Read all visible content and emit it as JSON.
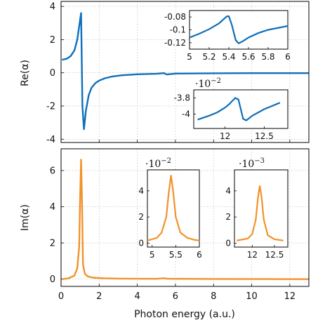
{
  "colors": {
    "re_series": "#0f6fba",
    "im_series": "#f2922a"
  },
  "chart_data": [
    {
      "id": "re",
      "type": "line",
      "ylabel": "Re(α)",
      "xlim": [
        0,
        13
      ],
      "ylim": [
        -4.2,
        4.3
      ],
      "grid": true,
      "yticks": [
        -4,
        -2,
        0,
        2,
        4
      ],
      "ytick_labels": [
        "-4",
        "-2",
        "0",
        "2",
        "4"
      ],
      "series": [
        {
          "color": "#0f6fba",
          "x": [
            0.05,
            0.3,
            0.5,
            0.7,
            0.85,
            0.95,
            1.05,
            1.12,
            1.2,
            1.3,
            1.45,
            1.6,
            1.8,
            2.0,
            2.3,
            2.7,
            3.2,
            4.0,
            5.0,
            5.4,
            5.55,
            6.0,
            8.0,
            10.0,
            13.0
          ],
          "y": [
            0.78,
            0.85,
            1.0,
            1.35,
            2.0,
            2.8,
            3.6,
            -2.0,
            -3.4,
            -2.3,
            -1.35,
            -0.9,
            -0.62,
            -0.47,
            -0.33,
            -0.22,
            -0.15,
            -0.09,
            -0.06,
            -0.02,
            -0.1,
            -0.05,
            -0.03,
            -0.02,
            -0.02
          ]
        }
      ],
      "insets": [
        {
          "id": "re-inset-1",
          "xlim": [
            5,
            6
          ],
          "ylim": [
            -0.13,
            -0.07
          ],
          "xticks": [
            5,
            5.2,
            5.4,
            5.6,
            5.8,
            6
          ],
          "xtick_labels": [
            "5",
            "5.2",
            "5.4",
            "5.6",
            "5.8",
            "6"
          ],
          "yticks": [
            -0.08,
            -0.1,
            -0.12
          ],
          "ytick_labels": [
            "-0.08",
            "-0.1",
            "-0.12"
          ],
          "x": [
            5.0,
            5.1,
            5.2,
            5.3,
            5.35,
            5.38,
            5.4,
            5.43,
            5.47,
            5.5,
            5.55,
            5.6,
            5.7,
            5.8,
            5.9,
            6.0
          ],
          "y": [
            -0.112,
            -0.106,
            -0.099,
            -0.09,
            -0.083,
            -0.079,
            -0.079,
            -0.092,
            -0.116,
            -0.121,
            -0.117,
            -0.112,
            -0.105,
            -0.1,
            -0.097,
            -0.094
          ]
        },
        {
          "id": "re-inset-2",
          "xlim": [
            11.6,
            12.8
          ],
          "ylim": [
            -4.18,
            -3.7
          ],
          "xticks": [
            12,
            12.5
          ],
          "xtick_labels": [
            "12",
            "12.5"
          ],
          "yticks": [
            -3.8,
            -4
          ],
          "ytick_labels": [
            "-3.8",
            "-4"
          ],
          "scale_base": "10",
          "scale_exponent": "−2",
          "x": [
            11.65,
            11.8,
            11.9,
            12.0,
            12.05,
            12.1,
            12.13,
            12.17,
            12.2,
            12.23,
            12.27,
            12.35,
            12.5,
            12.7
          ],
          "y": [
            -4.07,
            -4.02,
            -3.98,
            -3.92,
            -3.88,
            -3.83,
            -3.8,
            -3.82,
            -3.94,
            -4.06,
            -4.08,
            -4.02,
            -3.94,
            -3.86
          ]
        }
      ]
    },
    {
      "id": "im",
      "type": "line",
      "ylabel": "Im(α)",
      "xlabel": "Photon energy (a.u.)",
      "xlim": [
        0,
        13
      ],
      "ylim": [
        -0.4,
        7.2
      ],
      "grid": true,
      "xticks": [
        0,
        2,
        4,
        6,
        8,
        10,
        12
      ],
      "xtick_labels": [
        "0",
        "2",
        "4",
        "6",
        "8",
        "10",
        "12"
      ],
      "yticks": [
        0,
        2,
        4,
        6
      ],
      "ytick_labels": [
        "0",
        "2",
        "4",
        "6"
      ],
      "series": [
        {
          "color": "#f2922a",
          "x": [
            0.05,
            0.4,
            0.7,
            0.85,
            0.95,
            1.0,
            1.05,
            1.1,
            1.15,
            1.25,
            1.4,
            1.7,
            2.2,
            3.0,
            5.0,
            5.4,
            5.6,
            8.0,
            13.0
          ],
          "y": [
            0.0,
            0.05,
            0.2,
            0.6,
            1.8,
            4.5,
            6.6,
            4.2,
            0.8,
            0.3,
            0.15,
            0.08,
            0.05,
            0.03,
            0.02,
            0.05,
            0.02,
            0.01,
            0.0
          ]
        }
      ],
      "insets": [
        {
          "id": "im-inset-1",
          "xlim": [
            4.9,
            6.0
          ],
          "ylim": [
            -0.3,
            5.6
          ],
          "xticks": [
            5,
            5.5,
            6
          ],
          "xtick_labels": [
            "5",
            "5.5",
            "6"
          ],
          "yticks": [
            0,
            2,
            4
          ],
          "ytick_labels": [
            "0",
            "2",
            "4"
          ],
          "scale_base": "10",
          "scale_exponent": "−2",
          "x": [
            4.9,
            5.1,
            5.2,
            5.3,
            5.35,
            5.4,
            5.45,
            5.5,
            5.6,
            5.75,
            5.9,
            6.0
          ],
          "y": [
            0.2,
            0.4,
            0.8,
            2.0,
            3.8,
            5.2,
            3.8,
            2.0,
            0.8,
            0.4,
            0.25,
            0.2
          ]
        },
        {
          "id": "im-inset-2",
          "xlim": [
            11.6,
            12.8
          ],
          "ylim": [
            -0.3,
            5.6
          ],
          "xticks": [
            12,
            12.5
          ],
          "xtick_labels": [
            "12",
            "12.5"
          ],
          "yticks": [
            0,
            2,
            4
          ],
          "ytick_labels": [
            "0",
            "2",
            "4"
          ],
          "scale_base": "10",
          "scale_exponent": "−3",
          "x": [
            11.65,
            11.9,
            12.0,
            12.08,
            12.13,
            12.17,
            12.21,
            12.26,
            12.35,
            12.5,
            12.7
          ],
          "y": [
            0.2,
            0.35,
            0.7,
            1.8,
            3.5,
            4.4,
            3.5,
            1.8,
            0.6,
            0.3,
            0.2
          ]
        }
      ]
    }
  ]
}
